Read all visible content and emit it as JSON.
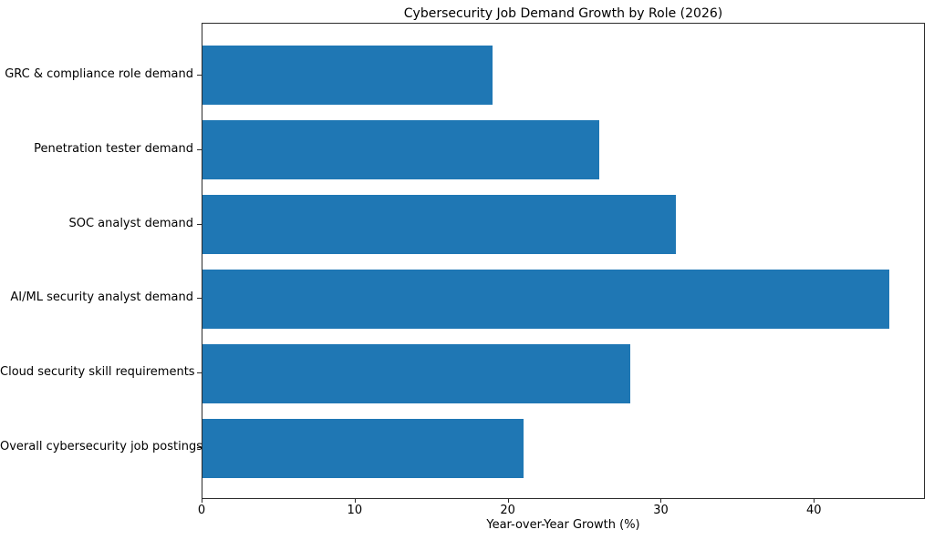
{
  "chart_data": {
    "type": "bar",
    "orientation": "horizontal",
    "title": "Cybersecurity Job Demand Growth by Role (2026)",
    "xlabel": "Year-over-Year Growth (%)",
    "ylabel": "",
    "categories": [
      "GRC & compliance role demand",
      "Penetration tester demand",
      "SOC analyst demand",
      "AI/ML security analyst demand",
      "Cloud security skill requirements",
      "Overall cybersecurity job postings"
    ],
    "categories_order": "top-to-bottom",
    "values": [
      19,
      26,
      31,
      45,
      28,
      21
    ],
    "xticks": [
      0,
      10,
      20,
      30,
      40
    ],
    "xlim": [
      0,
      47.25
    ],
    "ylim_units": [
      -0.69,
      5.69
    ],
    "bar_height_units": 0.8,
    "bar_color": "#1f77b4",
    "axis_color": "#2b2b2b",
    "text_color": "#000000",
    "background_color": "#ffffff",
    "grid": false,
    "legend": "none"
  }
}
